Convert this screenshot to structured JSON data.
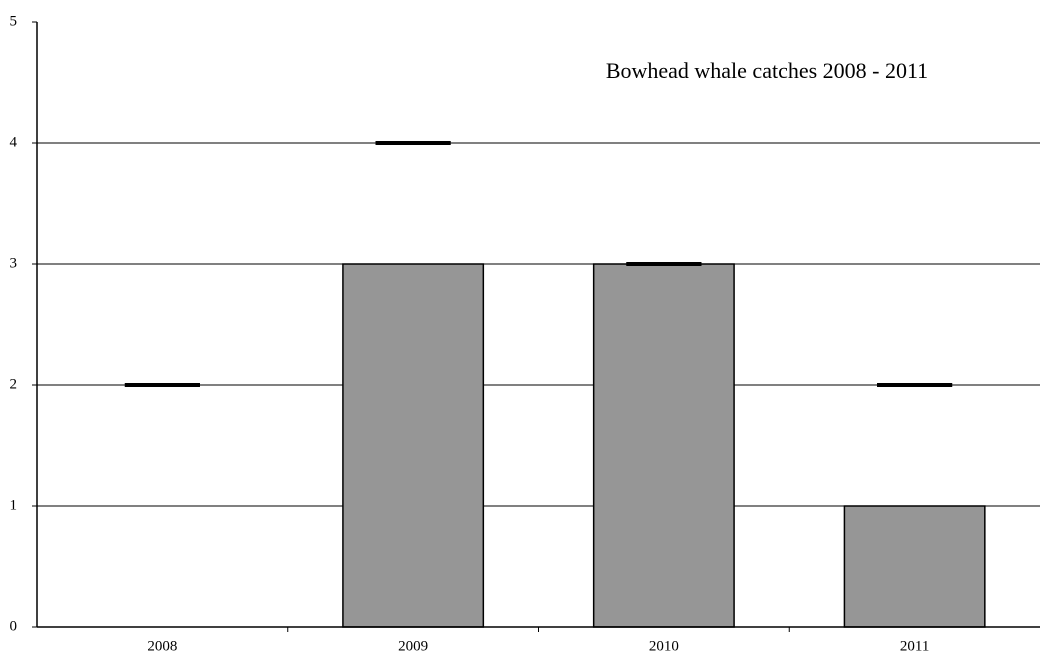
{
  "chart_data": {
    "type": "bar",
    "title": "Bowhead whale catches 2008 - 2011",
    "categories": [
      "2008",
      "2009",
      "2010",
      "2011"
    ],
    "series": [
      {
        "color": "#969696",
        "values": [
          0,
          3,
          3,
          1
        ]
      },
      {
        "color": "#000000",
        "marker": "dash",
        "values": [
          2,
          4,
          3,
          2
        ]
      }
    ],
    "ylim": [
      0,
      5
    ],
    "yticks": [
      0,
      1,
      2,
      3,
      4,
      5
    ],
    "grid": true
  }
}
